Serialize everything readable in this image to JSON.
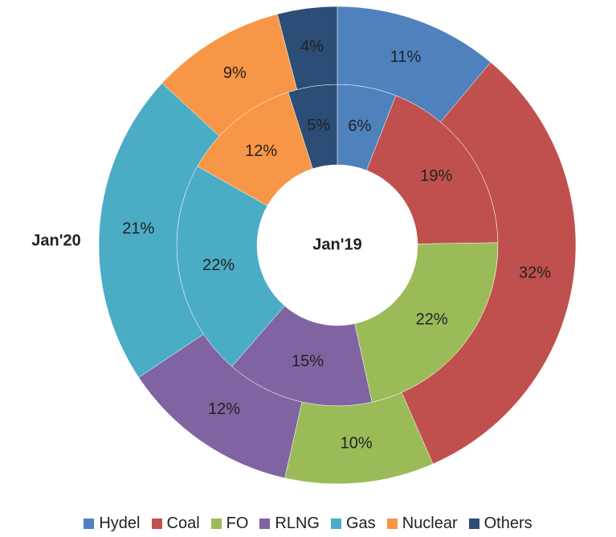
{
  "chart_data": {
    "type": "donut",
    "categories": [
      "Hydel",
      "Coal",
      "FO",
      "RLNG",
      "Gas",
      "Nuclear",
      "Others"
    ],
    "colors": [
      "#4f81bd",
      "#c0504d",
      "#9bbb59",
      "#8064a2",
      "#4bacc6",
      "#f79646",
      "#2c4d75"
    ],
    "series": [
      {
        "name": "Jan'19",
        "values": [
          6,
          19,
          22,
          15,
          22,
          12,
          5
        ],
        "value_labels": [
          "6%",
          "19%",
          "22%",
          "15%",
          "22%",
          "12%",
          "5%"
        ]
      },
      {
        "name": "Jan'20",
        "values": [
          11,
          32,
          10,
          12,
          21,
          9,
          4
        ],
        "value_labels": [
          "11%",
          "32%",
          "10%",
          "12%",
          "21%",
          "9%",
          "4%"
        ]
      }
    ],
    "legend": "bottom"
  }
}
